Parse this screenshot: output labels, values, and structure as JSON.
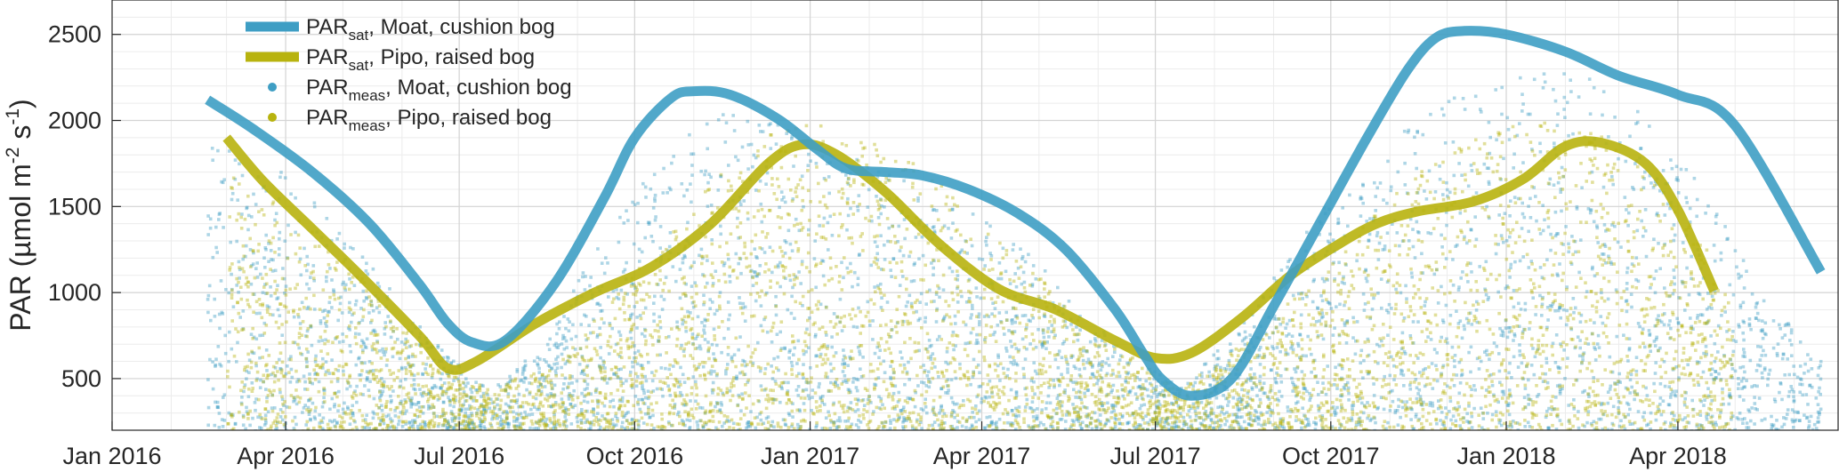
{
  "chart_data": {
    "type": "line",
    "title": "",
    "xlabel": "",
    "ylabel": "PAR (µmol m-2 s-1)",
    "ylabel_parts": {
      "prefix": "PAR (µmol m",
      "exp1": "-2",
      "mid": " s",
      "exp2": "-1",
      "suffix": ")"
    },
    "xlim": [
      "2016-01-01",
      "2018-06-24"
    ],
    "ylim": [
      200,
      2700
    ],
    "grid": true,
    "minor_grid": true,
    "legend_placement": "top-left",
    "x_ticks": [
      {
        "date": "2016-01-01",
        "label": "Jan 2016"
      },
      {
        "date": "2016-04-01",
        "label": "Apr 2016"
      },
      {
        "date": "2016-07-01",
        "label": "Jul 2016"
      },
      {
        "date": "2016-10-01",
        "label": "Oct 2016"
      },
      {
        "date": "2017-01-01",
        "label": "Jan 2017"
      },
      {
        "date": "2017-04-01",
        "label": "Apr 2017"
      },
      {
        "date": "2017-07-01",
        "label": "Jul 2017"
      },
      {
        "date": "2017-10-01",
        "label": "Oct 2017"
      },
      {
        "date": "2018-01-01",
        "label": "Jan 2018"
      },
      {
        "date": "2018-04-01",
        "label": "Apr 2018"
      }
    ],
    "y_ticks": [
      500,
      1000,
      1500,
      2000,
      2500
    ],
    "colors": {
      "moat": "#3e9ec4",
      "pipo": "#b8b30e"
    },
    "series": [
      {
        "name": "PARsat, Moat, cushion bog",
        "legend": {
          "base": "PAR",
          "sub": "sat",
          "rest": ", Moat, cushion bog"
        },
        "kind": "line",
        "color": "#3e9ec4",
        "x": [
          "2016-02-20",
          "2016-03-15",
          "2016-04-15",
          "2016-05-15",
          "2016-06-10",
          "2016-06-25",
          "2016-07-08",
          "2016-07-25",
          "2016-08-20",
          "2016-09-15",
          "2016-10-01",
          "2016-10-20",
          "2016-11-01",
          "2016-11-20",
          "2016-12-15",
          "2017-01-05",
          "2017-01-20",
          "2017-02-10",
          "2017-03-01",
          "2017-03-25",
          "2017-04-20",
          "2017-05-15",
          "2017-06-10",
          "2017-06-25",
          "2017-07-05",
          "2017-07-20",
          "2017-08-10",
          "2017-09-01",
          "2017-09-25",
          "2017-10-20",
          "2017-11-10",
          "2017-11-25",
          "2017-12-10",
          "2018-01-01",
          "2018-02-01",
          "2018-03-01",
          "2018-04-01",
          "2018-05-01",
          "2018-06-15"
        ],
        "y": [
          2120,
          1950,
          1700,
          1400,
          1050,
          820,
          710,
          720,
          1050,
          1550,
          1900,
          2130,
          2170,
          2150,
          2010,
          1830,
          1720,
          1700,
          1680,
          1600,
          1460,
          1250,
          900,
          640,
          490,
          400,
          500,
          920,
          1400,
          1900,
          2290,
          2480,
          2520,
          2500,
          2400,
          2260,
          2150,
          1970,
          1120
        ]
      },
      {
        "name": "PARsat, Pipo, raised bog",
        "legend": {
          "base": "PAR",
          "sub": "sat",
          "rest": ", Pipo, raised bog"
        },
        "kind": "line",
        "color": "#b8b30e",
        "x": [
          "2016-03-01",
          "2016-03-20",
          "2016-04-15",
          "2016-05-10",
          "2016-06-10",
          "2016-06-25",
          "2016-07-10",
          "2016-08-10",
          "2016-09-10",
          "2016-10-10",
          "2016-11-10",
          "2016-12-10",
          "2016-12-28",
          "2017-01-15",
          "2017-02-10",
          "2017-03-10",
          "2017-04-10",
          "2017-05-10",
          "2017-06-10",
          "2017-07-01",
          "2017-07-20",
          "2017-08-15",
          "2017-09-10",
          "2017-10-05",
          "2017-10-25",
          "2017-11-15",
          "2017-12-15",
          "2018-01-10",
          "2018-02-01",
          "2018-02-20",
          "2018-03-15",
          "2018-04-01",
          "2018-04-20"
        ],
        "y": [
          1900,
          1650,
          1370,
          1100,
          750,
          560,
          600,
          820,
          1000,
          1150,
          1400,
          1750,
          1860,
          1800,
          1580,
          1280,
          1020,
          900,
          720,
          620,
          650,
          850,
          1100,
          1280,
          1400,
          1470,
          1530,
          1660,
          1850,
          1870,
          1750,
          1480,
          1010
        ]
      },
      {
        "name": "PARmeas, Moat, cushion bog",
        "legend": {
          "base": "PAR",
          "sub": "meas",
          "rest": ", Moat, cushion bog"
        },
        "kind": "scatter",
        "color": "#3e9ec4",
        "x_range": [
          "2016-02-20",
          "2018-06-15"
        ],
        "envelope": {
          "x": [
            "2016-02-20",
            "2016-04-01",
            "2016-05-15",
            "2016-06-20",
            "2016-07-15",
            "2016-08-15",
            "2016-09-15",
            "2016-10-15",
            "2016-11-15",
            "2016-12-15",
            "2017-01-15",
            "2017-02-15",
            "2017-03-15",
            "2017-04-15",
            "2017-05-15",
            "2017-06-15",
            "2017-07-15",
            "2017-08-15",
            "2017-09-15",
            "2017-10-15",
            "2017-11-15",
            "2017-12-15",
            "2018-01-15",
            "2018-02-15",
            "2018-03-15",
            "2018-04-15",
            "2018-05-15",
            "2018-06-15"
          ],
          "y": [
            1900,
            1700,
            1200,
            700,
            450,
            700,
            1350,
            1800,
            2050,
            2000,
            1850,
            1700,
            1600,
            1350,
            1000,
            650,
            450,
            800,
            1350,
            1700,
            2000,
            2200,
            2300,
            2250,
            2050,
            1600,
            1000,
            600
          ]
        }
      },
      {
        "name": "PARmeas, Pipo, raised bog",
        "legend": {
          "base": "PAR",
          "sub": "meas",
          "rest": ", Pipo, raised bog"
        },
        "kind": "scatter",
        "color": "#b8b30e",
        "x_range": [
          "2016-03-01",
          "2018-04-30"
        ],
        "envelope": {
          "x": [
            "2016-03-01",
            "2016-04-01",
            "2016-05-15",
            "2016-06-20",
            "2016-07-15",
            "2016-08-15",
            "2016-09-15",
            "2016-10-15",
            "2016-11-15",
            "2016-12-15",
            "2017-01-15",
            "2017-02-15",
            "2017-03-15",
            "2017-04-15",
            "2017-05-15",
            "2017-06-15",
            "2017-07-15",
            "2017-08-15",
            "2017-09-15",
            "2017-10-15",
            "2017-11-15",
            "2017-12-15",
            "2018-01-15",
            "2018-02-15",
            "2018-03-15",
            "2018-04-15",
            "2018-04-30"
          ],
          "y": [
            1700,
            1500,
            1050,
            600,
            450,
            550,
            900,
            1300,
            1700,
            1950,
            2000,
            1850,
            1600,
            1250,
            950,
            650,
            450,
            700,
            1000,
            1350,
            1700,
            1900,
            2000,
            1950,
            1700,
            1300,
            900
          ]
        }
      }
    ]
  }
}
